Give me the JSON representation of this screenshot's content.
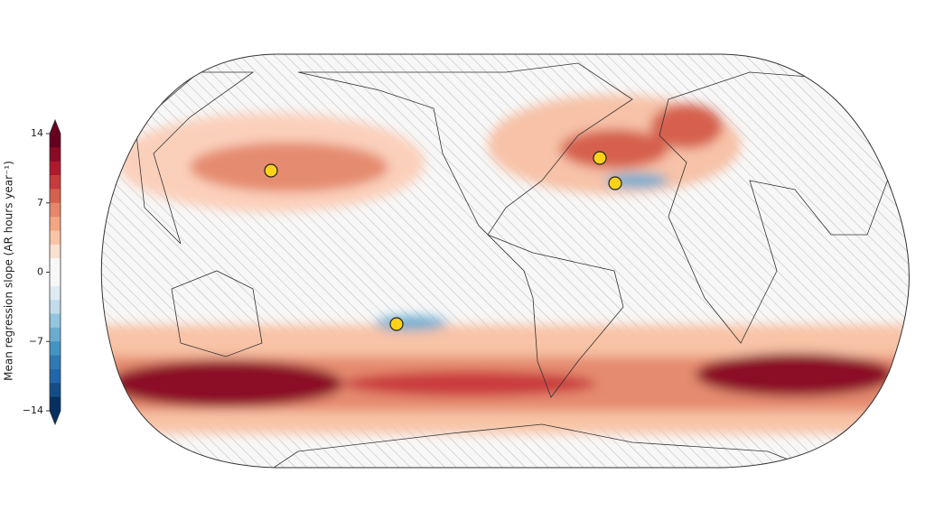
{
  "colorbar": {
    "label": "Mean regression slope (AR hours year⁻¹)",
    "range": [
      -14,
      14
    ],
    "ticks": [
      14,
      7,
      0,
      {
        "value": -7,
        "label": "−7"
      },
      {
        "value": -14,
        "label": "−14"
      }
    ],
    "colors": [
      "#67001f",
      "#8b0a26",
      "#b2182b",
      "#c93a3c",
      "#d6604d",
      "#e7866a",
      "#f4a582",
      "#f8c3a6",
      "#fbe0d0",
      "#f7f7f7",
      "#f7f7f7",
      "#deebf2",
      "#c2dcec",
      "#92c5de",
      "#6aacd0",
      "#4393c3",
      "#2f79b5",
      "#2166ac",
      "#144c87",
      "#053061"
    ]
  }
}
